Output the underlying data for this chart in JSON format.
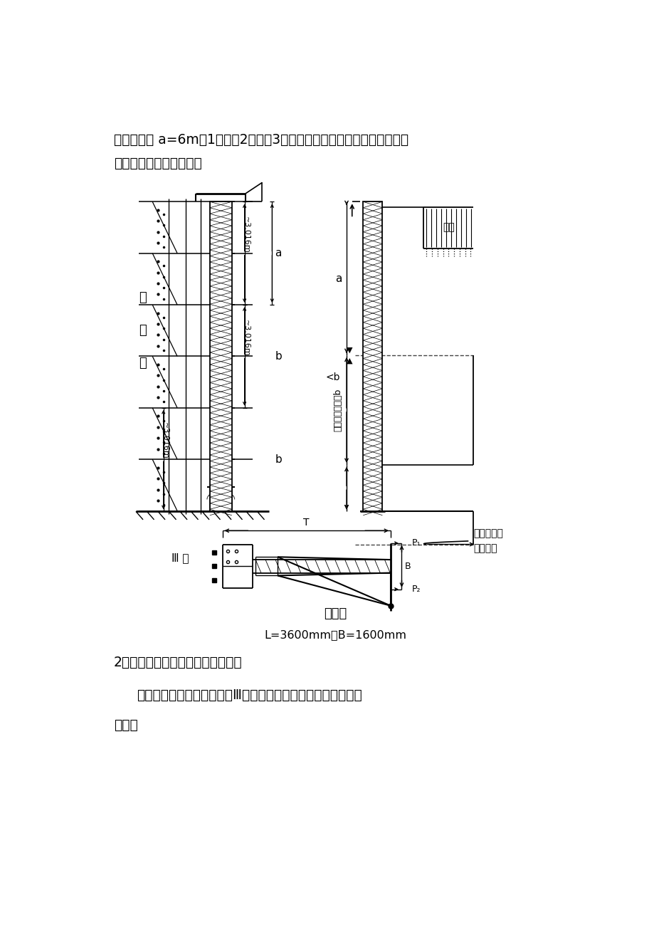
{
  "bg_color": "#ffffff",
  "line1": "自由端高度 a=6m。1＃楼、2＃楼、3＃楼人货梯附墙架二层面设置一道，",
  "line2": "以上每隔二层设置一道。",
  "caption1": "附墙架",
  "caption2": "L=3600mm，B=1600mm",
  "section2_title": "2、人货梯附墙架对墙面作用计算：",
  "section2_body1": "附墙架对墙面作用力计算（Ⅲ型附墙架）由施工升降机使用手册",
  "section2_body2": "查得："
}
